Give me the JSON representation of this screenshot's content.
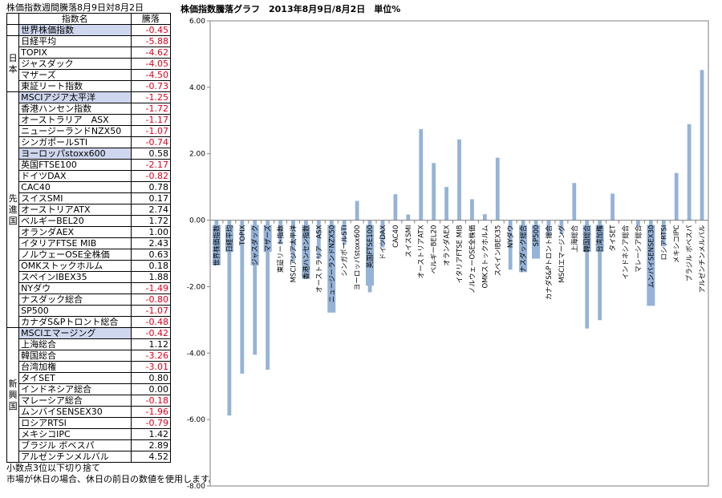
{
  "table": {
    "caption": "株価指数週間騰落8月9日対8月2日",
    "header_name": "指数名",
    "header_value": "騰落",
    "groups": [
      {
        "label": "",
        "rows": [
          {
            "name": "世界株価指数",
            "value": "-0.45",
            "highlight": true
          }
        ]
      },
      {
        "label": "日本",
        "rows": [
          {
            "name": "日経平均",
            "value": "-5.88"
          },
          {
            "name": "TOPIX",
            "value": "-4.62"
          },
          {
            "name": "ジャスダック",
            "value": "-4.05"
          },
          {
            "name": "マザーズ",
            "value": "-4.50"
          },
          {
            "name": "東証リート指数",
            "value": "-0.73"
          }
        ]
      },
      {
        "label": "先進国",
        "rows": [
          {
            "name": "MSCIアジア太平洋",
            "value": "-1.25",
            "highlight": true
          },
          {
            "name": "香港ハンセン指数",
            "value": "-1.72"
          },
          {
            "name": "オーストラリア　ASX",
            "value": "-1.17"
          },
          {
            "name": "ニュージーランドNZX50",
            "value": "-1.07"
          },
          {
            "name": "シンガポールSTI",
            "value": "-0.74"
          },
          {
            "name": "ヨーロッパstoxx600",
            "value": "0.58",
            "highlight": true
          },
          {
            "name": "英国FTSE100",
            "value": "-2.17"
          },
          {
            "name": "ドイツDAX",
            "value": "-0.82"
          },
          {
            "name": "CAC40",
            "value": "0.78"
          },
          {
            "name": "スイスSMI",
            "value": "0.17"
          },
          {
            "name": "オーストリアATX",
            "value": "2.74"
          },
          {
            "name": "ベルギーBEL20",
            "value": "1.72"
          },
          {
            "name": "オランダAEX",
            "value": "1.00"
          },
          {
            "name": "イタリアFTSE MIB",
            "value": "2.43"
          },
          {
            "name": "ノルウェーOSE全株価",
            "value": "0.63"
          },
          {
            "name": "OMKストックホルム",
            "value": "0.18"
          },
          {
            "name": "スペインIBEX35",
            "value": "1.88"
          },
          {
            "name": "NYダウ",
            "value": "-1.49"
          },
          {
            "name": "ナスダック総合",
            "value": "-0.80"
          },
          {
            "name": "SP500",
            "value": "-1.07"
          },
          {
            "name": "カナダS&Pトロント総合",
            "value": "-0.48"
          }
        ]
      },
      {
        "label": "新興国",
        "rows": [
          {
            "name": "MSCIエマージング",
            "value": "-0.42",
            "highlight": true
          },
          {
            "name": "上海総合",
            "value": "1.12"
          },
          {
            "name": "韓国総合",
            "value": "-3.26"
          },
          {
            "name": "台湾加権",
            "value": "-3.01"
          },
          {
            "name": "タイSET",
            "value": "0.80"
          },
          {
            "name": "インドネシア総合",
            "value": "0.00"
          },
          {
            "name": "マレーシア総合",
            "value": "-0.18"
          },
          {
            "name": "ムンバイSENSEX30",
            "value": "-1.96"
          },
          {
            "name": "ロシアRTSI",
            "value": "-0.79"
          },
          {
            "name": "メキシコIPC",
            "value": "1.42"
          },
          {
            "name": "ブラジル ボベスパ",
            "value": "2.89"
          },
          {
            "name": "アルゼンチンメルバル",
            "value": "4.52"
          }
        ]
      }
    ],
    "notes": [
      "小数点3位以下切り捨て",
      "市場が休日の場合、休日の前日の数値を使用します。"
    ]
  },
  "chart_data": {
    "type": "bar",
    "title": "株価指数騰落グラフ　2013年8月9日/8月2日　単位%",
    "ylim": [
      -8,
      6
    ],
    "yticks": [
      "6.00",
      "4.00",
      "2.00",
      "0.00",
      "-2.00",
      "-4.00",
      "-6.00",
      "-8.00"
    ],
    "bar_color": "#95b3d7",
    "highlight_label_bg": "#95b3d7",
    "categories": [
      "世界株価指数",
      "日経平均",
      "TOPIX",
      "ジャスダック",
      "マザーズ",
      "東証リート指数",
      "MSCIアジア太平洋",
      "香港ハンセン指数",
      "オーストラリア　ASX",
      "ニュージーランドNZX50",
      "シンガポールSTI",
      "ヨーロッパstoxx600",
      "英国FTSE100",
      "ドイツDAX",
      "CAC40",
      "スイスSMI",
      "オーストリアATX",
      "ベルギーBEL20",
      "オランダAEX",
      "イタリアFTSE MIB",
      "ノルウェーOSE全株価",
      "OMKストックホルム",
      "スペインIBEX35",
      "NYダウ",
      "ナスダック総合",
      "SP500",
      "カナダS&Pトロント総合",
      "MSCIエマージング",
      "上海総合",
      "韓国総合",
      "台湾加権",
      "タイSET",
      "インドネシア総合",
      "マレーシア総合",
      "ムンバイSENSEX30",
      "ロシアRTSI",
      "メキシコIPC",
      "ブラジル ボベスパ",
      "アルゼンチンメルバル"
    ],
    "values": [
      -0.45,
      -5.88,
      -4.62,
      -4.05,
      -4.5,
      -0.73,
      -1.25,
      -1.72,
      -1.17,
      -1.07,
      -0.74,
      0.58,
      -2.17,
      -0.82,
      0.78,
      0.17,
      2.74,
      1.72,
      1.0,
      2.43,
      0.63,
      0.18,
      1.88,
      -1.49,
      -0.8,
      -1.07,
      -0.48,
      -0.42,
      1.12,
      -3.26,
      -3.01,
      0.8,
      0.0,
      -0.18,
      -1.96,
      -0.79,
      1.42,
      2.89,
      4.52
    ],
    "highlighted_labels": [
      "世界株価指数",
      "日経平均",
      "ジャスダック",
      "マザーズ",
      "香港ハンセン指数",
      "ニュージーランドNZX50",
      "英国FTSE100",
      "ナスダック総合",
      "SP500",
      "韓国総合",
      "台湾加権",
      "ムンバイSENSEX30"
    ]
  }
}
